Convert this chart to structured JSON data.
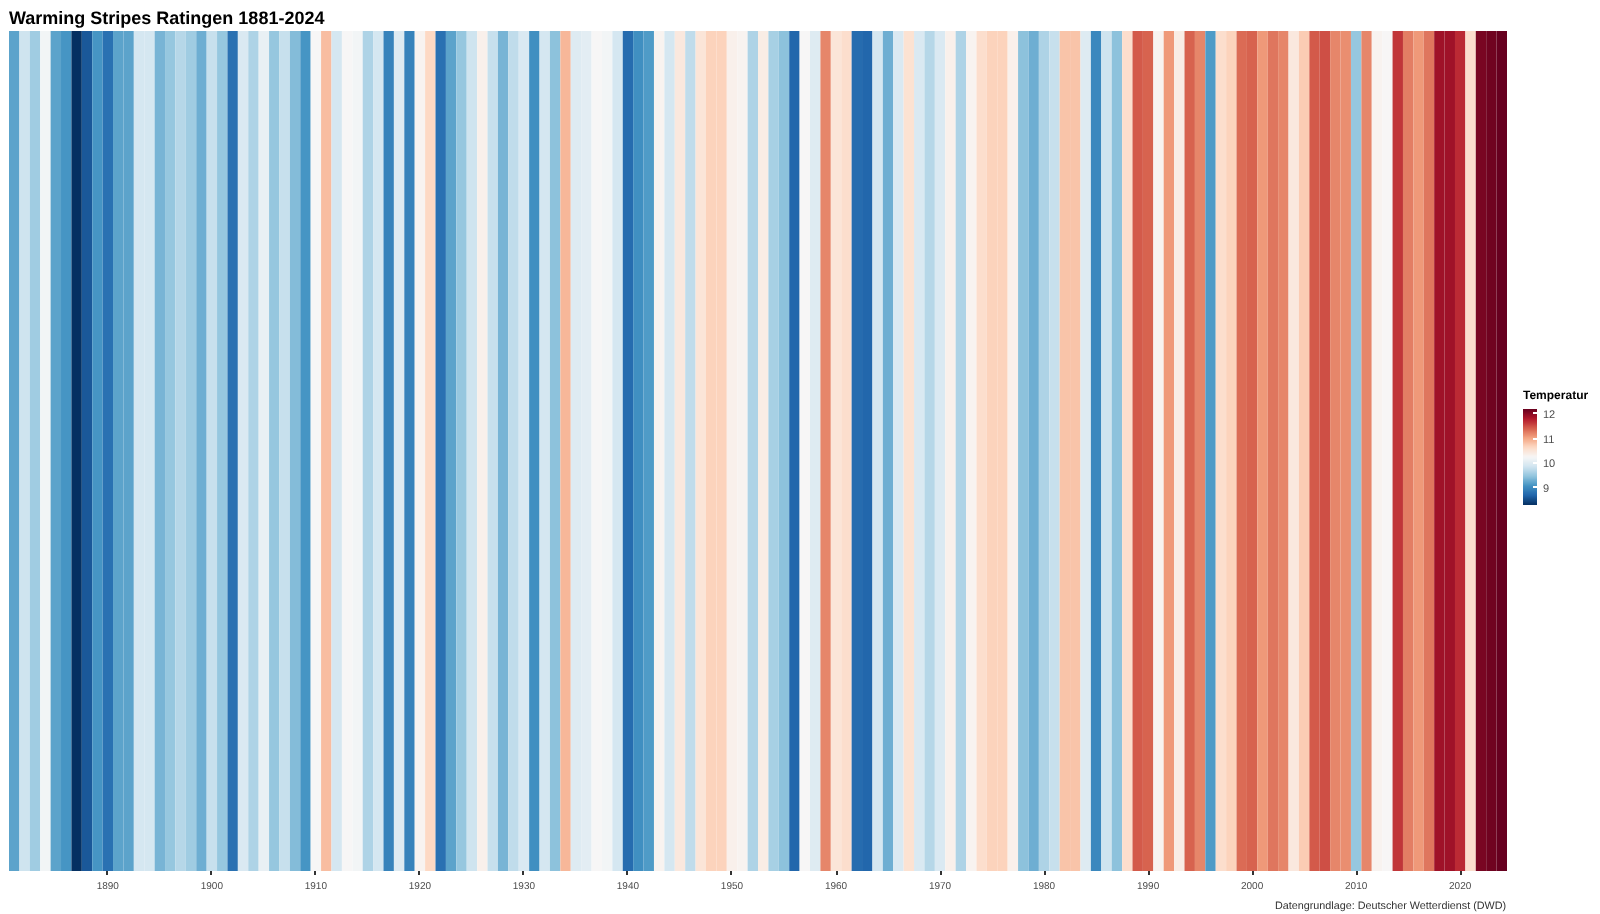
{
  "chart_data": {
    "type": "heatmap",
    "title": "Warming Stripes Ratingen 1881-2024",
    "clabel": "Temperatur",
    "clim": [
      8.3,
      12.2
    ],
    "cticks": [
      9,
      10,
      11,
      12
    ],
    "annotations": [
      "Datengrundlage: Deutscher Wetterdienst (DWD)"
    ],
    "y_categories": [
      null
    ],
    "categories": [
      null,
      null,
      null,
      null,
      null,
      null,
      null,
      null,
      null,
      "1890",
      null,
      null,
      null,
      null,
      null,
      null,
      null,
      null,
      null,
      "1900",
      null,
      null,
      null,
      null,
      null,
      null,
      null,
      null,
      null,
      "1910",
      null,
      null,
      null,
      null,
      null,
      null,
      null,
      null,
      null,
      "1920",
      null,
      null,
      null,
      null,
      null,
      null,
      null,
      null,
      null,
      "1930",
      null,
      null,
      null,
      null,
      null,
      null,
      null,
      null,
      null,
      "1940",
      null,
      null,
      null,
      null,
      null,
      null,
      null,
      null,
      null,
      "1950",
      null,
      null,
      null,
      null,
      null,
      null,
      null,
      null,
      null,
      "1960",
      null,
      null,
      null,
      null,
      null,
      null,
      null,
      null,
      null,
      "1970",
      null,
      null,
      null,
      null,
      null,
      null,
      null,
      null,
      null,
      "1980",
      null,
      null,
      null,
      null,
      null,
      null,
      null,
      null,
      null,
      "1990",
      null,
      null,
      null,
      null,
      null,
      null,
      null,
      null,
      null,
      "2000",
      null,
      null,
      null,
      null,
      null,
      null,
      null,
      null,
      null,
      "2010",
      null,
      null,
      null,
      null,
      null,
      null,
      null,
      null,
      null,
      "2020",
      null,
      null,
      null,
      null
    ],
    "cells": [
      [
        9.2,
        9.85,
        9.55,
        10.2,
        9.2,
        9.1,
        8.3,
        8.6,
        9.1,
        8.8,
        9.2,
        9.2,
        9.9,
        9.9,
        9.35,
        9.5,
        9.7,
        9.55,
        9.3,
        9.8,
        9.5,
        8.8,
        9.95,
        9.65,
        10.1,
        9.5,
        9.8,
        9.4,
        9.1,
        10.25,
        10.85,
        9.9,
        10.25,
        10.2,
        9.65,
        9.9,
        8.95,
        10.0,
        8.95,
        10.3,
        10.65,
        8.8,
        9.2,
        9.5,
        9.85,
        10.35,
        9.8,
        9.35,
        9.75,
        9.95,
        9.05,
        9.9,
        9.45,
        10.9,
        10.0,
        10.05,
        10.25,
        10.2,
        9.9,
        8.75,
        9.05,
        9.15,
        10.3,
        9.9,
        10.45,
        9.75,
        10.5,
        10.7,
        10.7,
        10.35,
        10.3,
        9.65,
        10.4,
        9.6,
        9.45,
        8.7,
        10.25,
        10.0,
        11.2,
        10.5,
        10.6,
        8.75,
        8.7,
        9.9,
        9.3,
        9.95,
        10.55,
        9.95,
        9.7,
        9.95,
        10.35,
        9.65,
        10.3,
        10.6,
        10.7,
        10.7,
        10.35,
        9.45,
        9.3,
        9.65,
        9.8,
        10.8,
        10.8,
        10.0,
        9.0,
        9.85,
        9.45,
        10.6,
        11.45,
        11.4,
        10.3,
        11.1,
        10.4,
        11.4,
        11.2,
        9.15,
        10.6,
        10.7,
        11.35,
        11.4,
        11.1,
        11.3,
        11.2,
        10.45,
        10.75,
        11.45,
        11.5,
        11.2,
        11.15,
        9.5,
        11.2,
        10.3,
        10.25,
        11.65,
        11.25,
        11.1,
        11.3,
        11.9,
        11.9,
        11.7,
        10.6,
        12.1,
        12.15,
        12.2
      ]
    ]
  }
}
